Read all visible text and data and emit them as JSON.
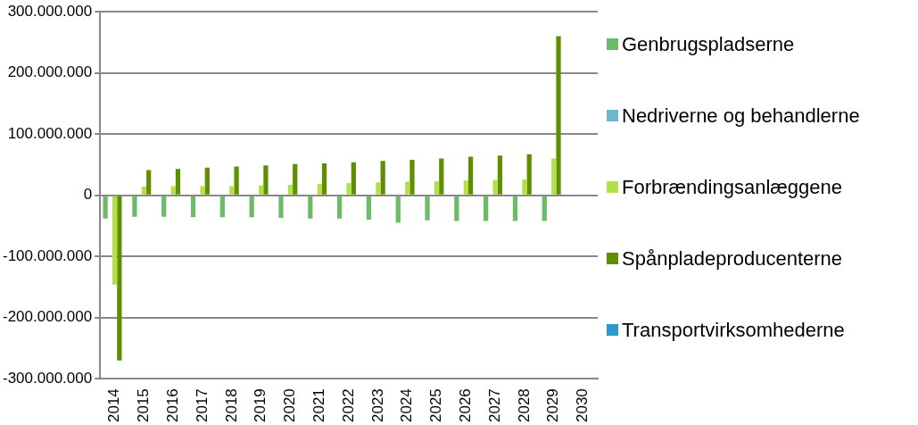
{
  "chart_data": {
    "type": "bar",
    "categories": [
      "2014",
      "2015",
      "2016",
      "2017",
      "2018",
      "2019",
      "2020",
      "2021",
      "2022",
      "2023",
      "2024",
      "2025",
      "2026",
      "2027",
      "2028",
      "2029",
      "2030"
    ],
    "series": [
      {
        "name": "Genbrugspladserne",
        "color": "#6dbb6a",
        "values": [
          -38000000,
          -35000000,
          -35000000,
          -36000000,
          -36000000,
          -36000000,
          -37000000,
          -38000000,
          -38000000,
          -40000000,
          -45000000,
          -41000000,
          -42000000,
          -42000000,
          -42000000,
          -42000000,
          null
        ]
      },
      {
        "name": "Nedriverne og behandlerne",
        "color": "#6fb7d0",
        "values": [
          0,
          0,
          0,
          0,
          0,
          0,
          0,
          0,
          0,
          0,
          0,
          0,
          0,
          0,
          0,
          0,
          null
        ]
      },
      {
        "name": "Forbrændingsanlæggene",
        "color": "#b2e04a",
        "values": [
          -146000000,
          14000000,
          15000000,
          15000000,
          15000000,
          16000000,
          17000000,
          18000000,
          20000000,
          21000000,
          22000000,
          23000000,
          24000000,
          25000000,
          26000000,
          60000000,
          null
        ]
      },
      {
        "name": "Spånpladeproducenterne",
        "color": "#5f8f00",
        "values": [
          -270000000,
          41000000,
          43000000,
          45000000,
          47000000,
          49000000,
          51000000,
          52000000,
          54000000,
          56000000,
          58000000,
          60000000,
          63000000,
          65000000,
          67000000,
          260000000,
          null
        ]
      },
      {
        "name": "Transportvirksomhederne",
        "color": "#2a9bc8",
        "values": [
          0,
          0,
          0,
          0,
          0,
          0,
          0,
          0,
          0,
          0,
          0,
          0,
          0,
          0,
          0,
          0,
          null
        ]
      }
    ],
    "ylim": [
      -300000000,
      300000000
    ],
    "yticks": [
      {
        "value": -300000000,
        "label": "-300.000.000"
      },
      {
        "value": -200000000,
        "label": "-200.000.000"
      },
      {
        "value": -100000000,
        "label": "-100.000.000"
      },
      {
        "value": 0,
        "label": "0"
      },
      {
        "value": 100000000,
        "label": "100.000.000"
      },
      {
        "value": 200000000,
        "label": "200.000.000"
      },
      {
        "value": 300000000,
        "label": "300.000.000"
      }
    ],
    "grid": "y",
    "legend": "right"
  }
}
